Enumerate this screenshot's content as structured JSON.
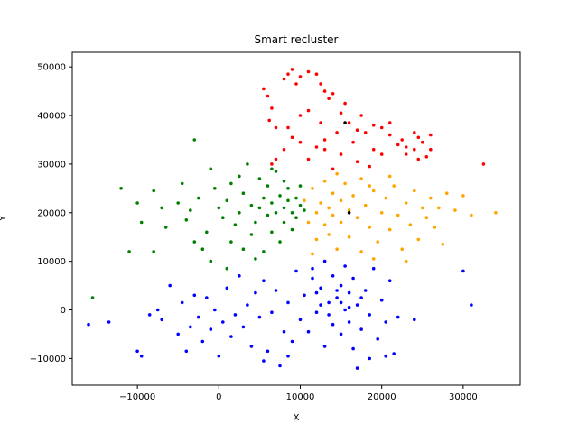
{
  "chart_data": {
    "type": "scatter",
    "title": "Smart recluster",
    "xlabel": "X",
    "ylabel": "Y",
    "xlim": [
      -18000,
      37000
    ],
    "ylim": [
      -15500,
      53000
    ],
    "xticks": [
      -10000,
      0,
      10000,
      20000,
      30000
    ],
    "yticks": [
      -10000,
      0,
      10000,
      20000,
      30000,
      40000,
      50000
    ],
    "xtick_labels": [
      "−10000",
      "0",
      "10000",
      "20000",
      "30000"
    ],
    "ytick_labels": [
      "−10000",
      "0",
      "10000",
      "20000",
      "30000",
      "40000",
      "50000"
    ],
    "grid": false,
    "legend": "none",
    "series": [
      {
        "color": "#ff0000",
        "points": [
          [
            5500,
            45500
          ],
          [
            6000,
            44000
          ],
          [
            6500,
            41500
          ],
          [
            6200,
            39000
          ],
          [
            7000,
            37500
          ],
          [
            8000,
            47500
          ],
          [
            8500,
            48500
          ],
          [
            9000,
            49500
          ],
          [
            10000,
            48000
          ],
          [
            11000,
            49000
          ],
          [
            12000,
            48500
          ],
          [
            12500,
            46500
          ],
          [
            13000,
            45000
          ],
          [
            13500,
            43500
          ],
          [
            14000,
            44500
          ],
          [
            15500,
            42500
          ],
          [
            15000,
            40500
          ],
          [
            16000,
            38500
          ],
          [
            17000,
            37000
          ],
          [
            18000,
            36500
          ],
          [
            19000,
            38000
          ],
          [
            20000,
            37500
          ],
          [
            21000,
            36000
          ],
          [
            22000,
            34000
          ],
          [
            23000,
            33500
          ],
          [
            24000,
            33000
          ],
          [
            25000,
            34500
          ],
          [
            26000,
            33000
          ],
          [
            25500,
            31500
          ],
          [
            24500,
            35500
          ],
          [
            24000,
            36500
          ],
          [
            20000,
            32000
          ],
          [
            19000,
            33000
          ],
          [
            17000,
            30500
          ],
          [
            18500,
            29500
          ],
          [
            15000,
            32000
          ],
          [
            13000,
            35000
          ],
          [
            12000,
            33500
          ],
          [
            11000,
            31000
          ],
          [
            10000,
            34500
          ],
          [
            9000,
            35500
          ],
          [
            8000,
            33000
          ],
          [
            7000,
            31000
          ],
          [
            6500,
            30000
          ],
          [
            8500,
            37500
          ],
          [
            10000,
            40000
          ],
          [
            11000,
            41000
          ],
          [
            13000,
            33000
          ],
          [
            14500,
            36500
          ],
          [
            16500,
            34500
          ],
          [
            21000,
            38500
          ],
          [
            22500,
            35000
          ],
          [
            26000,
            36000
          ],
          [
            24500,
            31000
          ],
          [
            32500,
            30000
          ],
          [
            12500,
            38500
          ],
          [
            17500,
            40000
          ],
          [
            23000,
            32000
          ],
          [
            14000,
            29000
          ],
          [
            9500,
            46500
          ]
        ]
      },
      {
        "color": "#008000",
        "points": [
          [
            -12000,
            25000
          ],
          [
            -10000,
            22000
          ],
          [
            -9500,
            18000
          ],
          [
            -8000,
            24500
          ],
          [
            -7000,
            21000
          ],
          [
            -6500,
            17000
          ],
          [
            -5000,
            22000
          ],
          [
            -4000,
            18500
          ],
          [
            -3500,
            20500
          ],
          [
            -3000,
            14000
          ],
          [
            -2500,
            23000
          ],
          [
            -2000,
            12500
          ],
          [
            -1500,
            16000
          ],
          [
            -1000,
            29000
          ],
          [
            -500,
            25000
          ],
          [
            0,
            21000
          ],
          [
            500,
            19000
          ],
          [
            1000,
            8500
          ],
          [
            1000,
            22500
          ],
          [
            1500,
            26000
          ],
          [
            2000,
            17500
          ],
          [
            2500,
            20000
          ],
          [
            3000,
            12500
          ],
          [
            3000,
            24000
          ],
          [
            3500,
            30000
          ],
          [
            4000,
            21500
          ],
          [
            4000,
            15500
          ],
          [
            4500,
            18000
          ],
          [
            5000,
            27000
          ],
          [
            5000,
            21000
          ],
          [
            5500,
            23000
          ],
          [
            5500,
            12000
          ],
          [
            6000,
            19500
          ],
          [
            6000,
            25500
          ],
          [
            6500,
            16000
          ],
          [
            6500,
            22000
          ],
          [
            7000,
            20000
          ],
          [
            7000,
            28500
          ],
          [
            7500,
            23500
          ],
          [
            7500,
            14000
          ],
          [
            8000,
            21000
          ],
          [
            8000,
            18000
          ],
          [
            8500,
            25000
          ],
          [
            8500,
            22500
          ],
          [
            9000,
            20000
          ],
          [
            9000,
            16500
          ],
          [
            9500,
            23000
          ],
          [
            9500,
            19000
          ],
          [
            10000,
            21500
          ],
          [
            10000,
            25500
          ],
          [
            10500,
            20500
          ],
          [
            -3000,
            35000
          ],
          [
            -11000,
            12000
          ],
          [
            -15500,
            2500
          ],
          [
            -8000,
            12000
          ],
          [
            -1000,
            10000
          ],
          [
            2500,
            27500
          ],
          [
            4500,
            10500
          ],
          [
            1500,
            14000
          ],
          [
            -4500,
            26000
          ],
          [
            6500,
            29000
          ],
          [
            8000,
            26500
          ]
        ]
      },
      {
        "color": "#ffa500",
        "points": [
          [
            10500,
            22500
          ],
          [
            11000,
            18000
          ],
          [
            11500,
            25000
          ],
          [
            12000,
            20000
          ],
          [
            12000,
            14500
          ],
          [
            12500,
            22000
          ],
          [
            13000,
            26500
          ],
          [
            13000,
            17500
          ],
          [
            13500,
            21000
          ],
          [
            14000,
            24000
          ],
          [
            14000,
            19500
          ],
          [
            14500,
            12500
          ],
          [
            15000,
            22500
          ],
          [
            15000,
            18000
          ],
          [
            15500,
            26000
          ],
          [
            16000,
            20500
          ],
          [
            16000,
            15000
          ],
          [
            16500,
            23500
          ],
          [
            17000,
            19000
          ],
          [
            17500,
            27000
          ],
          [
            17500,
            12000
          ],
          [
            18000,
            21500
          ],
          [
            18500,
            17000
          ],
          [
            19000,
            24500
          ],
          [
            19500,
            14000
          ],
          [
            20000,
            20000
          ],
          [
            20500,
            23000
          ],
          [
            21000,
            16500
          ],
          [
            21500,
            25500
          ],
          [
            22000,
            19500
          ],
          [
            22500,
            12500
          ],
          [
            23000,
            22000
          ],
          [
            23500,
            17500
          ],
          [
            24000,
            24500
          ],
          [
            24500,
            14500
          ],
          [
            25000,
            21000
          ],
          [
            25500,
            19000
          ],
          [
            26000,
            23000
          ],
          [
            26500,
            17000
          ],
          [
            27000,
            21000
          ],
          [
            27500,
            13500
          ],
          [
            28000,
            24000
          ],
          [
            29000,
            20500
          ],
          [
            30000,
            23500
          ],
          [
            31000,
            19500
          ],
          [
            34000,
            20000
          ],
          [
            11500,
            11500
          ],
          [
            14500,
            28000
          ],
          [
            19000,
            10500
          ],
          [
            21000,
            27500
          ],
          [
            23000,
            10000
          ],
          [
            18500,
            25500
          ],
          [
            13500,
            15500
          ]
        ]
      },
      {
        "color": "#0000ff",
        "points": [
          [
            -13500,
            -2500
          ],
          [
            -10000,
            -8500
          ],
          [
            -9500,
            -9500
          ],
          [
            -8500,
            -1000
          ],
          [
            -7500,
            0
          ],
          [
            -7000,
            -2000
          ],
          [
            -6000,
            5000
          ],
          [
            -5000,
            -5000
          ],
          [
            -4500,
            1500
          ],
          [
            -4000,
            -8500
          ],
          [
            -3500,
            -3500
          ],
          [
            -3000,
            3000
          ],
          [
            -2500,
            -1500
          ],
          [
            -2000,
            -6500
          ],
          [
            -1500,
            2500
          ],
          [
            -1000,
            -4000
          ],
          [
            -500,
            0
          ],
          [
            0,
            -9500
          ],
          [
            500,
            -2500
          ],
          [
            1000,
            4500
          ],
          [
            1500,
            -5500
          ],
          [
            2000,
            -1000
          ],
          [
            2500,
            7000
          ],
          [
            3000,
            -3500
          ],
          [
            3500,
            1000
          ],
          [
            4000,
            -7500
          ],
          [
            4500,
            3500
          ],
          [
            5000,
            -1500
          ],
          [
            5500,
            6000
          ],
          [
            6000,
            -8500
          ],
          [
            6500,
            -500
          ],
          [
            7000,
            4000
          ],
          [
            7500,
            -11500
          ],
          [
            8000,
            -4500
          ],
          [
            8500,
            1500
          ],
          [
            9000,
            -6500
          ],
          [
            9500,
            8000
          ],
          [
            10000,
            -2000
          ],
          [
            10500,
            3000
          ],
          [
            11000,
            -4500
          ],
          [
            11500,
            6500
          ],
          [
            12000,
            -500
          ],
          [
            12500,
            4500
          ],
          [
            13000,
            -7500
          ],
          [
            13000,
            10000
          ],
          [
            13500,
            1500
          ],
          [
            14000,
            -3000
          ],
          [
            14000,
            7000
          ],
          [
            14500,
            2500
          ],
          [
            15000,
            -5000
          ],
          [
            15000,
            5000
          ],
          [
            15500,
            0
          ],
          [
            15500,
            9000
          ],
          [
            16000,
            -2500
          ],
          [
            16000,
            3500
          ],
          [
            16500,
            -8000
          ],
          [
            16500,
            6500
          ],
          [
            17000,
            1000
          ],
          [
            17000,
            -12000
          ],
          [
            17500,
            -4000
          ],
          [
            18000,
            4000
          ],
          [
            18500,
            -1000
          ],
          [
            19000,
            8500
          ],
          [
            19500,
            -6000
          ],
          [
            20000,
            2000
          ],
          [
            20500,
            -2500
          ],
          [
            21000,
            6000
          ],
          [
            21500,
            -9000
          ],
          [
            22000,
            -1500
          ],
          [
            12500,
            1000
          ],
          [
            13500,
            -1000
          ],
          [
            14500,
            4000
          ],
          [
            15000,
            1500
          ],
          [
            16000,
            500
          ],
          [
            17500,
            2500
          ],
          [
            12000,
            3500
          ],
          [
            11500,
            8500
          ],
          [
            24000,
            -2000
          ],
          [
            31000,
            1000
          ],
          [
            30000,
            8000
          ],
          [
            -16000,
            -3000
          ],
          [
            8500,
            -9500
          ],
          [
            5500,
            -10500
          ],
          [
            18500,
            -10000
          ],
          [
            20500,
            -9500
          ]
        ]
      }
    ],
    "extra_points": [
      {
        "x": 16000,
        "y": 20000,
        "color": "#000000"
      },
      {
        "x": 15500,
        "y": 38500,
        "color": "#000000"
      }
    ]
  }
}
